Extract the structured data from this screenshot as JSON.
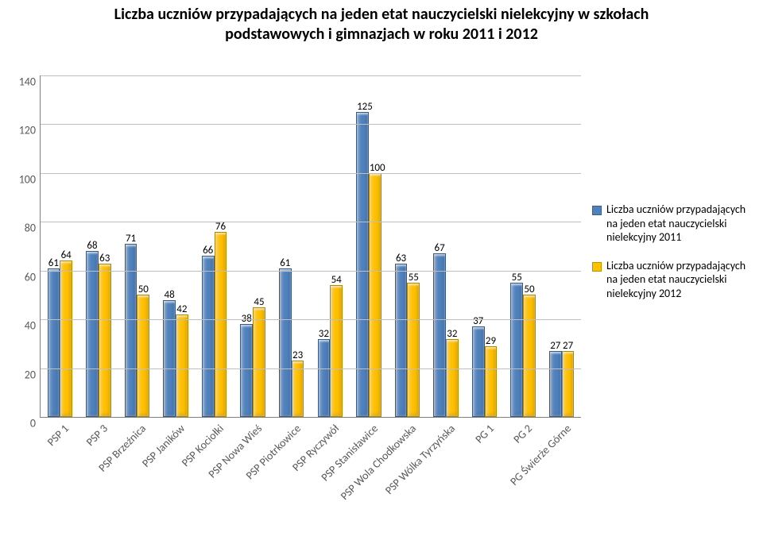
{
  "title_line1": "Liczba uczniów przypadających na jeden etat nauczycielski nielekcyjny w szkołach",
  "title_line2": "podstawowych i gimnazjach w roku 2011 i 2012",
  "title_fontsize_pt": 16,
  "chart": {
    "type": "bar",
    "ylim": [
      0,
      140
    ],
    "ytick_step": 20,
    "yticks": [
      0,
      20,
      40,
      60,
      80,
      100,
      120,
      140
    ],
    "background_color": "#ffffff",
    "grid_color": "#bfbfbf",
    "axis_color": "#808080",
    "bar_group_gap_ratio": 0.35,
    "series": [
      {
        "name": "Liczba uczniów przypadających na jeden etat nauczycielski nielekcyjny 2011",
        "color": "#4f81bd"
      },
      {
        "name": "Liczba uczniów przypadających na jeden etat nauczycielski nielekcyjny 2012",
        "color": "#ffc000"
      }
    ],
    "categories": [
      "PSP 1",
      "PSP 3",
      "PSP Brzeźnica",
      "PSP Janików",
      "PSP Kociołki",
      "PSP Nowa Wieś",
      "PSP Piotrkowice",
      "PSP Ryczywół",
      "PSP Stanisławice",
      "PSP Wola Chodkowska",
      "PSP Wólka Tyrzyńska",
      "PG 1",
      "PG 2",
      "PG Świerże Górne"
    ],
    "data": {
      "s0": [
        61,
        68,
        71,
        48,
        66,
        38,
        61,
        32,
        125,
        63,
        67,
        37,
        55,
        27
      ],
      "s1": [
        64,
        63,
        50,
        42,
        76,
        45,
        23,
        54,
        100,
        55,
        32,
        29,
        50,
        27
      ]
    },
    "value_labels": [
      [
        "61",
        "64"
      ],
      [
        "68",
        "63"
      ],
      [
        "71",
        "50"
      ],
      [
        "48",
        "42"
      ],
      [
        "66",
        "76"
      ],
      [
        "38",
        "45"
      ],
      [
        "61",
        "23"
      ],
      [
        "32",
        "54"
      ],
      [
        "125",
        "100"
      ],
      [
        "63",
        "55"
      ],
      [
        "67",
        "32"
      ],
      [
        "37",
        "29"
      ],
      [
        "55",
        "50"
      ],
      [
        "27",
        "27"
      ]
    ],
    "label_fontsize_pt": 10
  },
  "legend": {
    "items": [
      {
        "color": "#4f81bd",
        "text": "Liczba uczniów przypadających na jeden etat nauczycielski nielekcyjny 2011"
      },
      {
        "color": "#ffc000",
        "text": "Liczba uczniów przypadających na jeden etat nauczycielski nielekcyjny 2012"
      }
    ]
  }
}
